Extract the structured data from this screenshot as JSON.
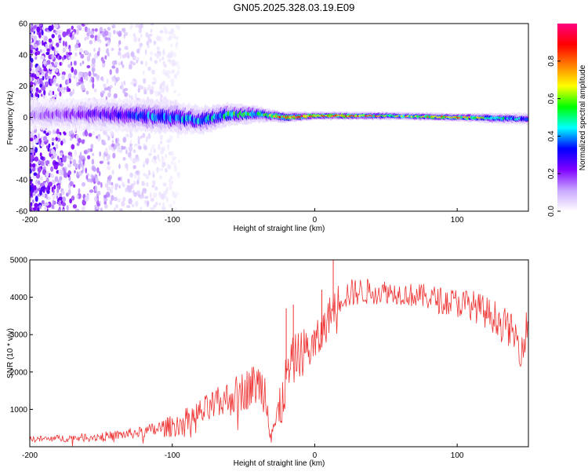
{
  "title": "GN05.2025.328.03.19.E09",
  "chart_data": [
    {
      "type": "heatmap",
      "xlabel": "Height of straight line (km)",
      "ylabel": "Frequency (Hz)",
      "xlim": [
        -200,
        150
      ],
      "ylim": [
        -60,
        60
      ],
      "x_ticks": [
        -200,
        -100,
        0,
        100
      ],
      "y_ticks": [
        -60,
        -40,
        -20,
        0,
        20,
        40,
        60
      ],
      "colorbar": {
        "label": "Normalized spectral amplitude",
        "range": [
          0,
          1
        ],
        "ticks": [
          0.0,
          0.2,
          0.4,
          0.6,
          0.8
        ],
        "colors": [
          "#ffffff",
          "#c8a8ff",
          "#7f00ff",
          "#0000ff",
          "#00ffff",
          "#00ff00",
          "#ffff00",
          "#ff7f00",
          "#ff0000",
          "#ff0080"
        ]
      },
      "ridge": {
        "center_frequency": [
          [
            -200,
            2
          ],
          [
            -150,
            2
          ],
          [
            -100,
            0
          ],
          [
            -80,
            -2
          ],
          [
            -60,
            2
          ],
          [
            -40,
            2
          ],
          [
            -20,
            0
          ],
          [
            0,
            1
          ],
          [
            50,
            1
          ],
          [
            100,
            0
          ],
          [
            150,
            -1
          ]
        ],
        "band_halfwidth": [
          [
            -200,
            8
          ],
          [
            -100,
            8
          ],
          [
            -50,
            5
          ],
          [
            -30,
            3
          ],
          [
            0,
            2
          ],
          [
            100,
            2
          ],
          [
            150,
            3
          ]
        ],
        "peak_amplitude": [
          [
            -200,
            0.15
          ],
          [
            -160,
            0.25
          ],
          [
            -130,
            0.35
          ],
          [
            -110,
            0.45
          ],
          [
            -80,
            0.45
          ],
          [
            -60,
            0.55
          ],
          [
            -40,
            0.6
          ],
          [
            -20,
            0.95
          ],
          [
            0,
            0.9
          ],
          [
            30,
            0.85
          ],
          [
            60,
            0.7
          ],
          [
            100,
            0.85
          ],
          [
            140,
            0.5
          ],
          [
            150,
            0.45
          ]
        ]
      },
      "scatter_region": {
        "x": [
          -200,
          -95
        ],
        "frequency": [
          -60,
          60
        ],
        "density_peak_x": -180
      }
    },
    {
      "type": "line",
      "xlabel": "Height of straight line (km)",
      "ylabel": "SNR (10 * v/v)",
      "xlim": [
        -200,
        150
      ],
      "ylim": [
        0,
        5000
      ],
      "x_ticks": [
        -200,
        -100,
        0,
        100
      ],
      "y_ticks": [
        1000,
        2000,
        3000,
        4000,
        5000
      ],
      "series": [
        {
          "name": "SNR",
          "color": "#ee3333",
          "x": [
            -200,
            -180,
            -160,
            -140,
            -120,
            -100,
            -90,
            -80,
            -70,
            -60,
            -50,
            -40,
            -35,
            -30,
            -25,
            -20,
            -15,
            -10,
            -5,
            0,
            5,
            10,
            15,
            20,
            30,
            40,
            50,
            60,
            70,
            80,
            90,
            100,
            110,
            120,
            130,
            140,
            145,
            150
          ],
          "y": [
            200,
            220,
            250,
            300,
            400,
            550,
            700,
            900,
            1100,
            1300,
            1500,
            1700,
            1500,
            500,
            800,
            1800,
            2300,
            2500,
            2600,
            2700,
            3000,
            3500,
            3900,
            4050,
            4150,
            4150,
            4150,
            4100,
            4050,
            4000,
            3900,
            3850,
            3800,
            3600,
            3400,
            3000,
            2600,
            3400
          ],
          "noise_amplitude": [
            [
              -200,
              80
            ],
            [
              -120,
              150
            ],
            [
              -100,
              300
            ],
            [
              -60,
              500
            ],
            [
              -40,
              600
            ],
            [
              -20,
              700
            ],
            [
              0,
              600
            ],
            [
              20,
              400
            ],
            [
              60,
              300
            ],
            [
              100,
              400
            ],
            [
              150,
              500
            ]
          ],
          "spikes": [
            [
              13,
              5000
            ],
            [
              -20,
              3700
            ],
            [
              -15,
              3800
            ],
            [
              5,
              4200
            ]
          ]
        }
      ]
    }
  ]
}
